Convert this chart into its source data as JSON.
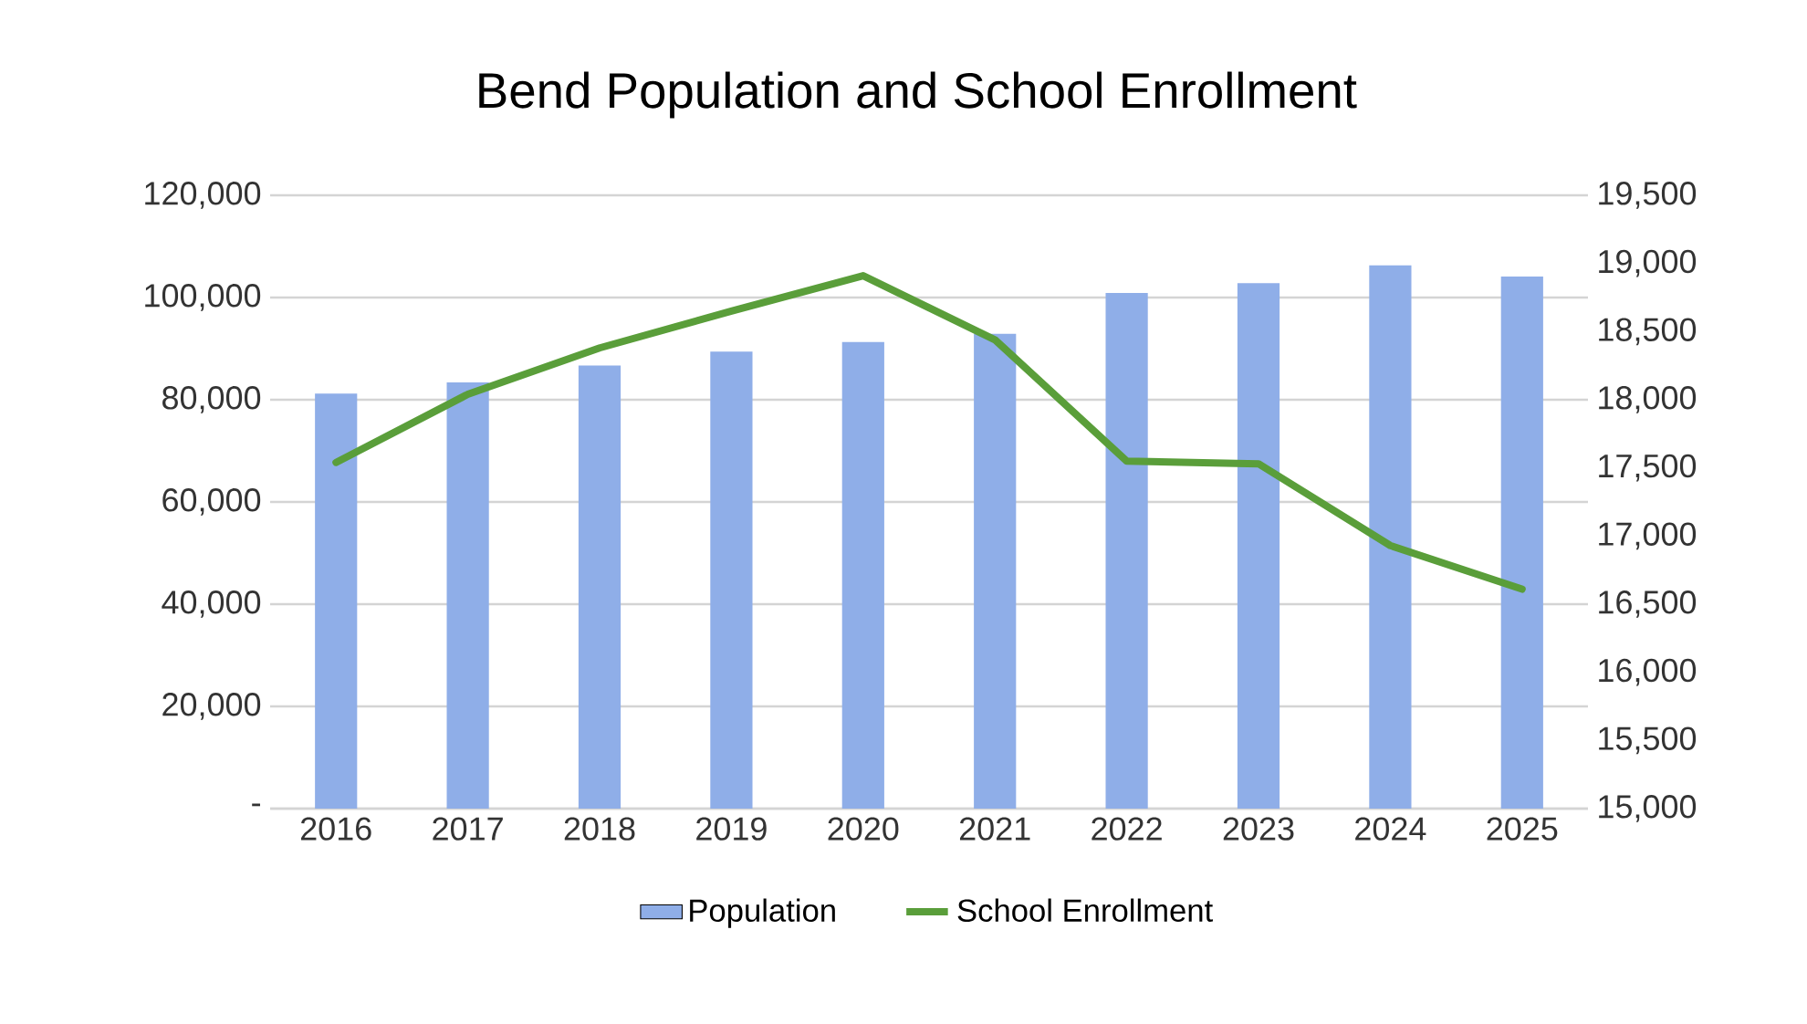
{
  "chart_data": {
    "type": "bar",
    "title": "Bend Population and School Enrollment",
    "categories": [
      "2016",
      "2017",
      "2018",
      "2019",
      "2020",
      "2021",
      "2022",
      "2023",
      "2024",
      "2025"
    ],
    "series": [
      {
        "name": "Population",
        "color": "#8faee8",
        "values": [
          81200,
          83400,
          86700,
          89400,
          91300,
          92900,
          100900,
          102800,
          106300,
          104100
        ]
      },
      {
        "name": "School Enrollment",
        "type": "line",
        "axis": "y2",
        "color": "#5a9e3a",
        "values": [
          17540,
          18040,
          18380,
          18650,
          18910,
          18440,
          17550,
          17530,
          16930,
          16610
        ]
      }
    ],
    "ylim": [
      0,
      120000
    ],
    "yticks": [
      {
        "value": 0,
        "label": "-"
      },
      {
        "value": 20000,
        "label": "20,000"
      },
      {
        "value": 40000,
        "label": "40,000"
      },
      {
        "value": 60000,
        "label": "60,000"
      },
      {
        "value": 80000,
        "label": "80,000"
      },
      {
        "value": 100000,
        "label": "100,000"
      },
      {
        "value": 120000,
        "label": "120,000"
      }
    ],
    "y2lim": [
      15000,
      19500
    ],
    "y2ticks": [
      {
        "value": 15000,
        "label": "15,000"
      },
      {
        "value": 15500,
        "label": "15,500"
      },
      {
        "value": 16000,
        "label": "16,000"
      },
      {
        "value": 16500,
        "label": "16,500"
      },
      {
        "value": 17000,
        "label": "17,000"
      },
      {
        "value": 17500,
        "label": "17,500"
      },
      {
        "value": 18000,
        "label": "18,000"
      },
      {
        "value": 18500,
        "label": "18,500"
      },
      {
        "value": 19000,
        "label": "19,000"
      },
      {
        "value": 19500,
        "label": "19,500"
      }
    ],
    "grid": "y",
    "legend": "bottom"
  }
}
